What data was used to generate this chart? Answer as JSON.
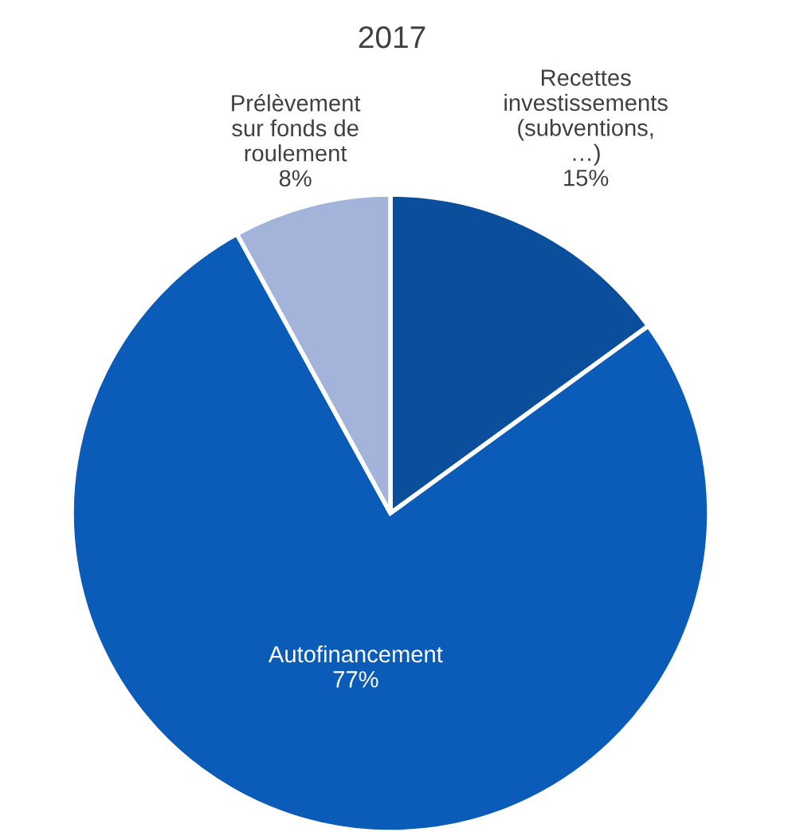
{
  "chart_data": {
    "type": "pie",
    "title": "2017",
    "categories": [
      "Recettes\ninvestissements\n(subventions,\n…)",
      "Autofinancement",
      "Prélèvement\nsur fonds de\nroulement"
    ],
    "values": [
      15,
      77,
      8
    ],
    "colors": [
      "#0b4f9c",
      "#0a5cb8",
      "#a4b3d9"
    ],
    "value_labels": [
      "15%",
      "77%",
      "8%"
    ]
  }
}
